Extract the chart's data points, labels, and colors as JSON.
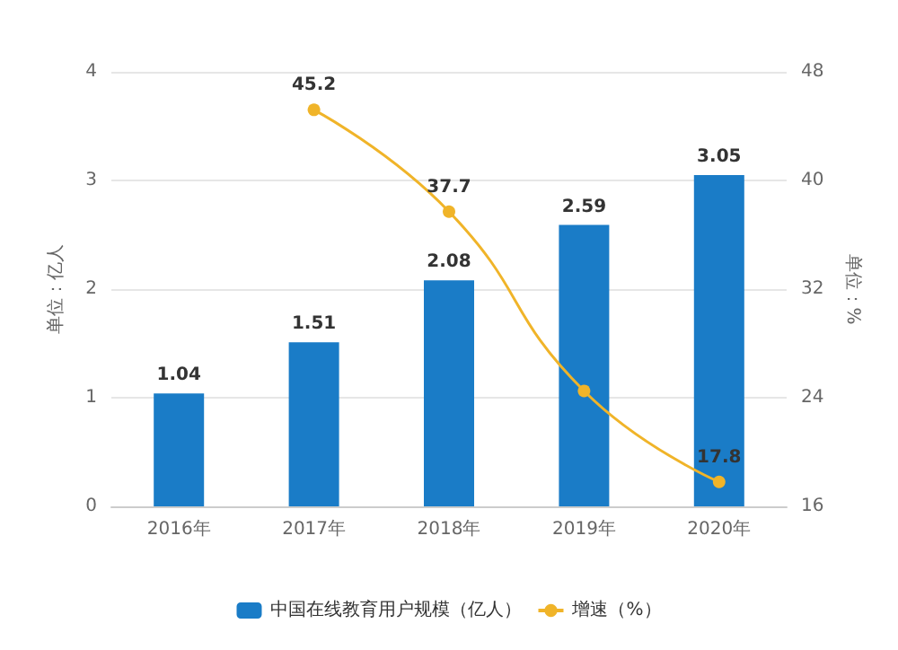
{
  "chart_data": {
    "type": "bar",
    "categories": [
      "2016年",
      "2017年",
      "2018年",
      "2019年",
      "2020年"
    ],
    "ylabel": "单位：亿人",
    "y2label": "单位：%",
    "series": [
      {
        "name": "中国在线教育用户规模（亿人）",
        "color": "#1a7cc7",
        "values": [
          1.04,
          1.51,
          2.08,
          2.59,
          3.05
        ],
        "value_labels": [
          "1.04",
          "1.51",
          "2.08",
          "2.59",
          "3.05"
        ]
      },
      {
        "name": "增速（%）",
        "type": "line",
        "axis": "y2",
        "color": "#f0b429",
        "values": [
          null,
          45.2,
          37.7,
          24.5,
          17.8
        ],
        "value_labels": [
          null,
          "45.2",
          "37.7",
          null,
          "17.8"
        ]
      }
    ],
    "ylim": [
      0,
      4
    ],
    "yticks": [
      0,
      1,
      2,
      3,
      4
    ],
    "y2lim": [
      16,
      48
    ],
    "y2ticks": [
      16,
      24,
      32,
      40,
      48
    ],
    "grid": "y",
    "legend": "bottom",
    "marker": "circle"
  }
}
